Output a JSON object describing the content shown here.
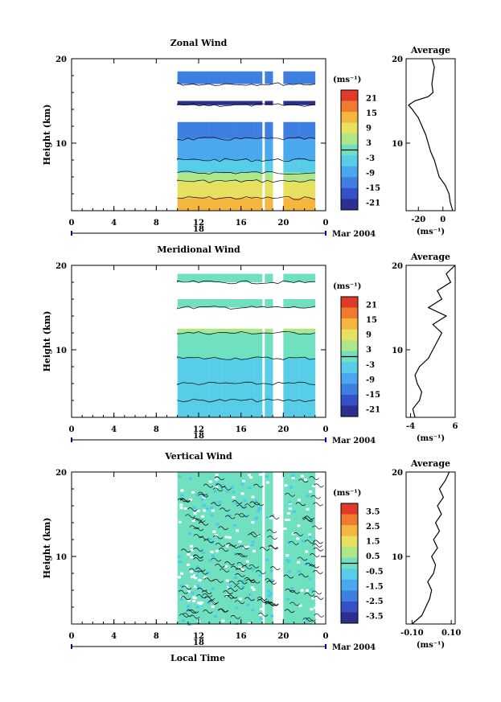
{
  "figure": {
    "xlabel_bottom": "Local Time",
    "date_label": "Mar 2004",
    "day_label": "18"
  },
  "chart_data": [
    {
      "type": "heatmap",
      "title": "Zonal Wind",
      "ylabel": "Height (km)",
      "xlabel": "",
      "x_ticks": [
        "0",
        "4",
        "8",
        "12",
        "16",
        "20",
        "0"
      ],
      "xlim": [
        0,
        24
      ],
      "y_ticks": [
        "20",
        "10"
      ],
      "ylim": [
        2,
        20
      ],
      "colorbar": {
        "unit": "(ms⁻¹)",
        "ticks": [
          "21",
          "15",
          "9",
          "3",
          "-3",
          "-9",
          "-15",
          "-21"
        ],
        "range": [
          -24,
          24
        ]
      },
      "data_time_range": [
        10,
        23
      ],
      "gaps": [
        [
          17.8,
          18.2
        ],
        [
          19.0,
          20.0
        ]
      ],
      "layers": [
        {
          "ymin": 2,
          "ymax": 3.5,
          "value": 15
        },
        {
          "ymin": 3.5,
          "ymax": 5.5,
          "value": 9
        },
        {
          "ymin": 5.5,
          "ymax": 6.5,
          "value": 3
        },
        {
          "ymin": 6.5,
          "ymax": 8,
          "value": -3
        },
        {
          "ymin": 8,
          "ymax": 10.5,
          "value": -9
        },
        {
          "ymin": 10.5,
          "ymax": 12.5,
          "value": -15
        },
        {
          "ymin": 14.5,
          "ymax": 15,
          "value": -24
        },
        {
          "ymin": 17,
          "ymax": 18.5,
          "value": -15
        }
      ],
      "average": {
        "title": "Average",
        "x_ticks": [
          "-20",
          "0"
        ],
        "xlim": [
          -30,
          10
        ],
        "xlabel": "(ms⁻¹)",
        "y_ticks": [
          "20",
          "10"
        ],
        "height": [
          2,
          3,
          4,
          5,
          6,
          7,
          8,
          9,
          10,
          11,
          12,
          13,
          14,
          14.5,
          15,
          15.5,
          16,
          17,
          18,
          19,
          20
        ],
        "value": [
          8,
          6,
          5,
          2,
          -3,
          -5,
          -7,
          -10,
          -12,
          -14,
          -17,
          -20,
          -25,
          -28,
          -23,
          -12,
          -8,
          -9,
          -8,
          -7,
          -9
        ]
      }
    },
    {
      "type": "heatmap",
      "title": "Meridional Wind",
      "ylabel": "Height (km)",
      "xlabel": "",
      "x_ticks": [
        "0",
        "4",
        "8",
        "12",
        "16",
        "20",
        "0"
      ],
      "xlim": [
        0,
        24
      ],
      "y_ticks": [
        "20",
        "10"
      ],
      "ylim": [
        2,
        20
      ],
      "colorbar": {
        "unit": "(ms⁻¹)",
        "ticks": [
          "21",
          "15",
          "9",
          "3",
          "-3",
          "-9",
          "-15",
          "-21"
        ],
        "range": [
          -24,
          24
        ]
      },
      "data_time_range": [
        10,
        23
      ],
      "gaps": [
        [
          17.8,
          18.2
        ],
        [
          19.0,
          20.0
        ]
      ],
      "layers": [
        {
          "ymin": 2,
          "ymax": 4,
          "value": -3
        },
        {
          "ymin": 4,
          "ymax": 6,
          "value": -5
        },
        {
          "ymin": 6,
          "ymax": 9,
          "value": -3
        },
        {
          "ymin": 9,
          "ymax": 12,
          "value": -1
        },
        {
          "ymin": 12,
          "ymax": 12.5,
          "value": 3
        },
        {
          "ymin": 15,
          "ymax": 16,
          "value": -2
        },
        {
          "ymin": 18,
          "ymax": 19,
          "value": 2
        }
      ],
      "average": {
        "title": "Average",
        "x_ticks": [
          "-4",
          "6"
        ],
        "xlim": [
          -5,
          6
        ],
        "xlabel": "(ms⁻¹)",
        "y_ticks": [
          "20",
          "10"
        ],
        "height": [
          2,
          3,
          4,
          5,
          6,
          7,
          8,
          9,
          10,
          11,
          12,
          13,
          14,
          15,
          16,
          17,
          18,
          19,
          20
        ],
        "value": [
          -3,
          -3.5,
          -2,
          -1.5,
          -2.5,
          -3,
          -2,
          0,
          1,
          2,
          3,
          1,
          4,
          0,
          3,
          2,
          5,
          4,
          6
        ]
      }
    },
    {
      "type": "heatmap",
      "title": "Vertical Wind",
      "ylabel": "Height (km)",
      "xlabel": "Local Time",
      "x_ticks": [
        "0",
        "4",
        "8",
        "12",
        "16",
        "20",
        "0"
      ],
      "xlim": [
        0,
        24
      ],
      "y_ticks": [
        "20",
        "10"
      ],
      "ylim": [
        2,
        20
      ],
      "colorbar": {
        "unit": "(ms⁻¹)",
        "ticks": [
          "3.5",
          "2.5",
          "1.5",
          "0.5",
          "-0.5",
          "-1.5",
          "-2.5",
          "-3.5"
        ],
        "range": [
          -4,
          4
        ]
      },
      "data_time_range": [
        10,
        23
      ],
      "gaps": [
        [
          17.8,
          18.2
        ],
        [
          18.9,
          20.0
        ]
      ],
      "layers": [
        {
          "ymin": 2,
          "ymax": 20,
          "value": 0.2
        }
      ],
      "average": {
        "title": "Average",
        "x_ticks": [
          "-0.10",
          "0.10"
        ],
        "xlim": [
          -0.13,
          0.12
        ],
        "xlabel": "(ms⁻¹)",
        "y_ticks": [
          "20",
          "10"
        ],
        "height": [
          2,
          3,
          4,
          5,
          6,
          7,
          8,
          9,
          10,
          11,
          12,
          13,
          14,
          15,
          16,
          17,
          18,
          19,
          20
        ],
        "value": [
          -0.1,
          -0.05,
          -0.03,
          -0.01,
          0.0,
          -0.02,
          0.01,
          0.02,
          0.0,
          0.03,
          0.01,
          0.04,
          0.02,
          0.05,
          0.03,
          0.06,
          0.04,
          0.07,
          0.09
        ]
      }
    }
  ]
}
